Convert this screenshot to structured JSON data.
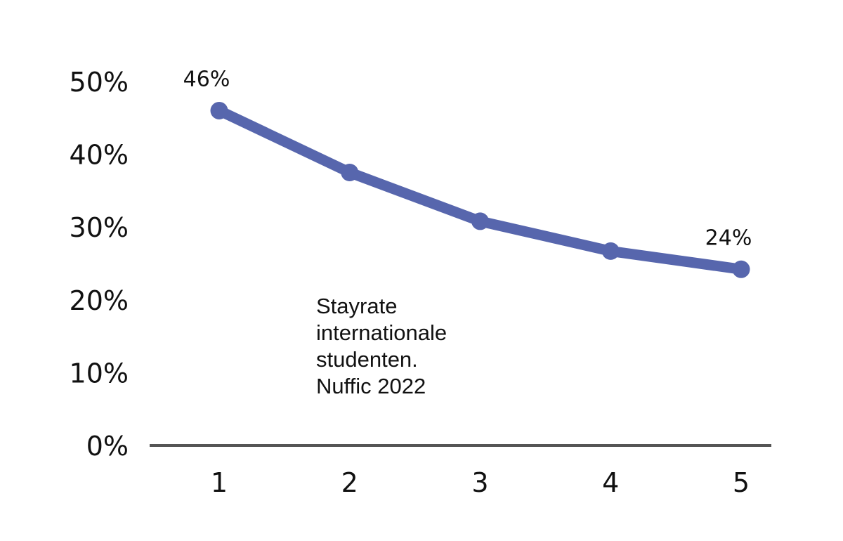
{
  "chart_data": {
    "type": "line",
    "x": [
      1,
      2,
      3,
      4,
      5
    ],
    "categories": [
      "1",
      "2",
      "3",
      "4",
      "5"
    ],
    "series": [
      {
        "values": [
          46,
          37.5,
          30.8,
          26.7,
          24.2
        ],
        "color": "#5766ad"
      }
    ],
    "data_labels": [
      {
        "index": 0,
        "text": "46%"
      },
      {
        "index": 4,
        "text": "24%"
      }
    ],
    "yticks": [
      "0%",
      "10%",
      "20%",
      "30%",
      "40%",
      "50%"
    ],
    "ylim": [
      0,
      50
    ],
    "grid": false,
    "annotation": [
      "Stayrate",
      "internationale",
      "studenten.",
      "Nuffic 2022"
    ],
    "axis_color": "#555555"
  }
}
